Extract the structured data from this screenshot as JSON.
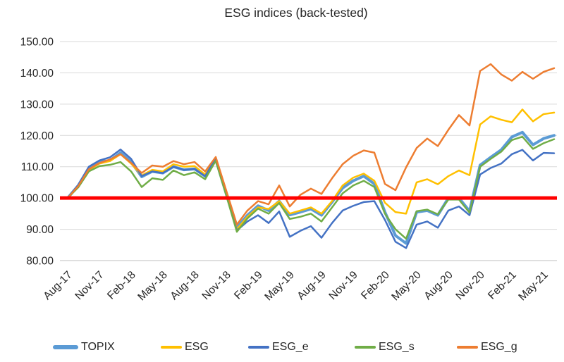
{
  "chart_data": {
    "type": "line",
    "title": "ESG indices (back-tested)",
    "x_labels_all": [
      "Aug-17",
      "Sep-17",
      "Oct-17",
      "Nov-17",
      "Dec-17",
      "Jan-18",
      "Feb-18",
      "Mar-18",
      "Apr-18",
      "May-18",
      "Jun-18",
      "Jul-18",
      "Aug-18",
      "Sep-18",
      "Oct-18",
      "Nov-18",
      "Dec-18",
      "Jan-19",
      "Feb-19",
      "Mar-19",
      "Apr-19",
      "May-19",
      "Jun-19",
      "Jul-19",
      "Aug-19",
      "Sep-19",
      "Oct-19",
      "Nov-19",
      "Dec-19",
      "Jan-20",
      "Feb-20",
      "Mar-20",
      "Apr-20",
      "May-20",
      "Jun-20",
      "Jul-20",
      "Aug-20",
      "Sep-20",
      "Oct-20",
      "Nov-20",
      "Dec-20",
      "Jan-21",
      "Feb-21",
      "Mar-21",
      "Apr-21",
      "May-21",
      "Jun-21"
    ],
    "x_tick_labels": [
      "Aug-17",
      "Nov-17",
      "Feb-18",
      "May-18",
      "Aug-18",
      "Nov-18",
      "Feb-19",
      "May-19",
      "Aug-19",
      "Nov-19",
      "Feb-20",
      "May-20",
      "Aug-20",
      "Nov-20",
      "Feb-21",
      "May-21"
    ],
    "x_tick_every": 3,
    "ylim": [
      80,
      150
    ],
    "y_tick_labels": [
      "150.00",
      "140.00",
      "130.00",
      "120.00",
      "110.00",
      "100.00",
      "90.00",
      "80.00"
    ],
    "grid_color": "#D9D9D9",
    "axis_line_color": "#BFBFBF",
    "text_color": "#262626",
    "legend_position": "bottom",
    "baseline": {
      "value": 100,
      "color": "#FF0000",
      "width": 5
    },
    "series": [
      {
        "name": "TOPIX",
        "color": "#5B9BD5",
        "width": 4,
        "values": [
          100,
          104,
          109.5,
          111.5,
          112,
          114.5,
          111.5,
          106.8,
          108.5,
          108,
          110,
          109,
          109.3,
          107,
          112.4,
          101.3,
          90.5,
          94.5,
          97.5,
          96,
          99,
          94.6,
          95.5,
          96.5,
          94.5,
          98.7,
          103.2,
          105.5,
          107,
          104.5,
          95.5,
          88,
          85.5,
          95.5,
          96,
          94.5,
          100,
          100,
          95.8,
          110.5,
          113,
          115.4,
          119.5,
          121,
          117,
          119,
          120
        ]
      },
      {
        "name": "ESG",
        "color": "#FFC000",
        "width": 2.5,
        "values": [
          100,
          103.7,
          109,
          111,
          111.8,
          114,
          111,
          107.2,
          109,
          108.5,
          110.8,
          110,
          110.2,
          107.5,
          112.6,
          101.8,
          90,
          94,
          97,
          96.5,
          99,
          95,
          96,
          97,
          95,
          99,
          104,
          106.5,
          107.8,
          105.5,
          98.5,
          95.5,
          95,
          105,
          106,
          104.4,
          107,
          108.8,
          107.3,
          123.5,
          126.1,
          125,
          124.2,
          128.3,
          124.5,
          126.8,
          127.3
        ]
      },
      {
        "name": "ESG_e",
        "color": "#4472C4",
        "width": 2.5,
        "values": [
          100,
          104.2,
          110,
          112,
          113,
          115.5,
          112.5,
          107,
          108.5,
          108,
          110,
          109,
          109.3,
          107,
          112.7,
          101.2,
          89.6,
          92.5,
          94.5,
          92,
          95.7,
          87.6,
          89.5,
          91,
          87.3,
          92,
          96,
          97.5,
          98.7,
          99,
          93,
          86,
          84,
          91.5,
          92.5,
          90.5,
          96,
          97.3,
          94.5,
          107.5,
          109.6,
          111,
          114,
          115.4,
          112,
          114.4,
          114.3
        ]
      },
      {
        "name": "ESG_s",
        "color": "#70AD47",
        "width": 2.5,
        "values": [
          100,
          103.4,
          108.5,
          110.2,
          110.6,
          111.5,
          108.5,
          103.5,
          106.3,
          105.8,
          108.8,
          107.3,
          108.2,
          106,
          111.9,
          100.8,
          89.2,
          93.5,
          96.6,
          95,
          98.4,
          93.3,
          94,
          95,
          92.5,
          97,
          101.5,
          104,
          105.5,
          103.5,
          95,
          90,
          87,
          95.8,
          96.3,
          94.8,
          99.5,
          99.5,
          95.3,
          110,
          112.5,
          114.8,
          118.5,
          119.6,
          115.7,
          117.5,
          118.8
        ]
      },
      {
        "name": "ESG_g",
        "color": "#ED7D31",
        "width": 2.5,
        "values": [
          100,
          103.8,
          109.2,
          111.2,
          112.3,
          114,
          111.2,
          108,
          110.4,
          110,
          111.8,
          110.8,
          111.5,
          108.5,
          113.1,
          102.3,
          91.5,
          96,
          99,
          98,
          104,
          97.3,
          101,
          103,
          101.3,
          106.3,
          110.8,
          113.5,
          115.2,
          114.5,
          104.5,
          102.5,
          109.8,
          116,
          119,
          116.6,
          121.8,
          126.5,
          123.2,
          140.6,
          142.8,
          139.5,
          137.5,
          140.3,
          138.1,
          140.3,
          141.5
        ]
      }
    ]
  }
}
